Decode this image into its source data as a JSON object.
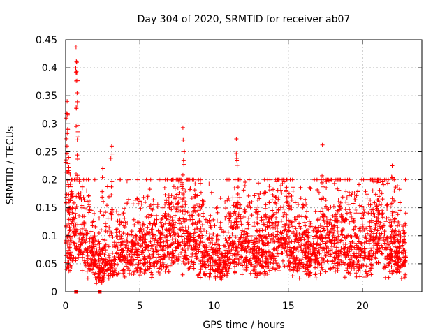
{
  "chart_data": {
    "type": "scatter",
    "title": "Day 304 of 2020, SRMTID for receiver ab07",
    "xlabel": "GPS time / hours",
    "ylabel": "SRMTID / TECUs",
    "xlim": [
      0,
      24
    ],
    "ylim": [
      0,
      0.45
    ],
    "x_ticks": [
      "0",
      "5",
      "10",
      "15",
      "20"
    ],
    "y_ticks": [
      "0",
      "0.05",
      "0.1",
      "0.15",
      "0.2",
      "0.25",
      "0.3",
      "0.35",
      "0.4",
      "0.45"
    ],
    "grid": true,
    "marker": "+",
    "series": [
      {
        "name": "SRMTID",
        "color": "#ff0000",
        "typical_level": 0.075,
        "points_per_hour": 140,
        "spike_times": [
          0.05,
          0.1,
          0.15,
          0.2,
          0.3,
          0.4,
          0.7,
          0.75,
          0.8,
          2.5,
          3.1,
          7.9,
          8.0,
          11.5,
          17.3,
          21.0,
          22.0
        ],
        "spike_values": [
          0.31,
          0.34,
          0.29,
          0.24,
          0.21,
          0.2,
          0.437,
          0.41,
          0.377,
          0.22,
          0.26,
          0.293,
          0.25,
          0.273,
          0.262,
          0.2,
          0.225
        ],
        "zero_points": [
          0.7,
          2.3
        ]
      }
    ]
  }
}
